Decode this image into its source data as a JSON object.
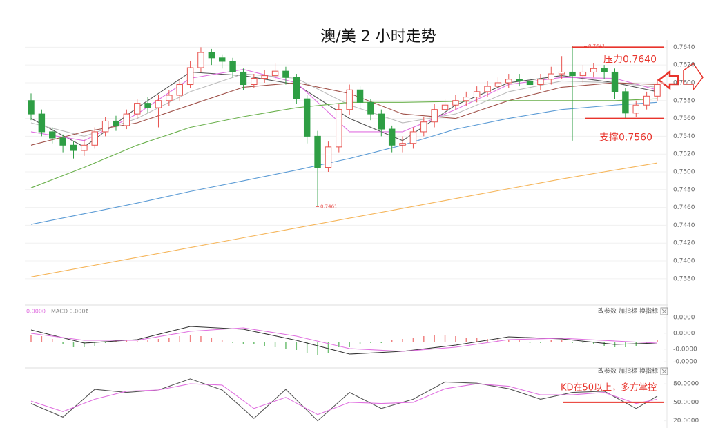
{
  "chart_data": [
    {
      "type": "candlestick",
      "title": "澳/美 2 小时走势",
      "open": [
        0.758,
        0.7565,
        0.7545,
        0.7538,
        0.753,
        0.7524,
        0.753,
        0.7545,
        0.7557,
        0.7552,
        0.7565,
        0.7577,
        0.7572,
        0.758,
        0.7586,
        0.7598,
        0.7617,
        0.7634,
        0.7628,
        0.7624,
        0.7612,
        0.7598,
        0.7605,
        0.7608,
        0.7613,
        0.7606,
        0.7582,
        0.754,
        0.7505,
        0.7528,
        0.757,
        0.7592,
        0.7578,
        0.7565,
        0.7548,
        0.753,
        0.7532,
        0.7545,
        0.7556,
        0.757,
        0.7575,
        0.758,
        0.7584,
        0.759,
        0.7596,
        0.76,
        0.7604,
        0.7602,
        0.7598,
        0.7604,
        0.761,
        0.7612,
        0.7608,
        0.7612,
        0.7616,
        0.7612,
        0.759,
        0.7566,
        0.7575,
        0.7585
      ],
      "high": [
        0.7588,
        0.757,
        0.755,
        0.7542,
        0.7534,
        0.7536,
        0.755,
        0.7562,
        0.7563,
        0.757,
        0.7582,
        0.7584,
        0.7586,
        0.7592,
        0.7604,
        0.7624,
        0.764,
        0.7638,
        0.7632,
        0.7628,
        0.7616,
        0.761,
        0.7614,
        0.7622,
        0.7618,
        0.761,
        0.7586,
        0.7546,
        0.7534,
        0.7576,
        0.7598,
        0.7596,
        0.7582,
        0.757,
        0.7552,
        0.754,
        0.755,
        0.7562,
        0.7576,
        0.7582,
        0.7586,
        0.759,
        0.7596,
        0.7602,
        0.7606,
        0.761,
        0.761,
        0.7606,
        0.761,
        0.7618,
        0.763,
        0.7641,
        0.762,
        0.7622,
        0.762,
        0.7616,
        0.7594,
        0.758,
        0.759,
        0.7604
      ],
      "low": [
        0.7558,
        0.754,
        0.7532,
        0.7522,
        0.7515,
        0.7518,
        0.7526,
        0.754,
        0.7546,
        0.7548,
        0.756,
        0.7566,
        0.755,
        0.7574,
        0.758,
        0.7594,
        0.7612,
        0.762,
        0.7616,
        0.7606,
        0.7592,
        0.7594,
        0.76,
        0.7602,
        0.7598,
        0.7576,
        0.7532,
        0.7461,
        0.75,
        0.7522,
        0.7564,
        0.7572,
        0.7558,
        0.754,
        0.7522,
        0.7522,
        0.7526,
        0.754,
        0.755,
        0.7564,
        0.757,
        0.7574,
        0.7578,
        0.7584,
        0.759,
        0.7594,
        0.7596,
        0.759,
        0.7592,
        0.7598,
        0.7604,
        0.7535,
        0.76,
        0.7606,
        0.7604,
        0.7582,
        0.756,
        0.7562,
        0.757,
        0.758
      ],
      "close": [
        0.7565,
        0.7545,
        0.7538,
        0.753,
        0.7524,
        0.753,
        0.7545,
        0.7557,
        0.7552,
        0.7565,
        0.7577,
        0.7572,
        0.758,
        0.7586,
        0.7598,
        0.7617,
        0.7634,
        0.7628,
        0.7624,
        0.7612,
        0.7598,
        0.7605,
        0.7608,
        0.7613,
        0.7606,
        0.7582,
        0.754,
        0.7505,
        0.7528,
        0.757,
        0.7592,
        0.7578,
        0.7565,
        0.7548,
        0.753,
        0.7532,
        0.7545,
        0.7556,
        0.757,
        0.7575,
        0.758,
        0.7584,
        0.759,
        0.7596,
        0.76,
        0.7604,
        0.7602,
        0.7598,
        0.7604,
        0.761,
        0.7612,
        0.7608,
        0.7612,
        0.7616,
        0.7612,
        0.759,
        0.7566,
        0.7575,
        0.7585,
        0.7598
      ],
      "up_color": "#e8534f",
      "down_color": "#2e9e44",
      "ylim": [
        0.7352,
        0.7648
      ],
      "yticks": [
        {
          "value": 0.764,
          "label": "0.7640"
        },
        {
          "value": 0.762,
          "label": "0.7620"
        },
        {
          "value": 0.76,
          "label": "0.7600"
        },
        {
          "value": 0.758,
          "label": "0.7580"
        },
        {
          "value": 0.756,
          "label": "0.7560"
        },
        {
          "value": 0.754,
          "label": "0.7540"
        },
        {
          "value": 0.752,
          "label": "0.7520"
        },
        {
          "value": 0.75,
          "label": "0.7500"
        },
        {
          "value": 0.748,
          "label": "0.7480"
        },
        {
          "value": 0.746,
          "label": "0.7460"
        },
        {
          "value": 0.744,
          "label": "0.7440"
        },
        {
          "value": 0.742,
          "label": "0.7420"
        },
        {
          "value": 0.74,
          "label": "0.7400"
        },
        {
          "value": 0.738,
          "label": "0.7380"
        }
      ],
      "grid": true,
      "line_x": [
        0,
        5,
        10,
        15,
        20,
        25,
        30,
        35,
        40,
        45,
        50,
        55,
        59
      ],
      "series": [
        {
          "color": "#555555",
          "values": [
            0.756,
            0.7528,
            0.7572,
            0.7612,
            0.7608,
            0.7598,
            0.756,
            0.7535,
            0.7575,
            0.76,
            0.7608,
            0.76,
            0.759
          ]
        },
        {
          "color": "#e070e0",
          "values": [
            0.7545,
            0.7535,
            0.7565,
            0.7605,
            0.7615,
            0.76,
            0.7545,
            0.7545,
            0.757,
            0.7598,
            0.7606,
            0.7605,
            0.7592
          ]
        },
        {
          "color": "#bbbbbb",
          "values": [
            0.7555,
            0.754,
            0.756,
            0.759,
            0.761,
            0.7605,
            0.7575,
            0.7555,
            0.7565,
            0.759,
            0.7602,
            0.76,
            0.7595
          ]
        },
        {
          "color": "#a0524a",
          "values": [
            0.753,
            0.7545,
            0.7555,
            0.7575,
            0.7595,
            0.76,
            0.7588,
            0.7565,
            0.756,
            0.758,
            0.7595,
            0.76,
            0.7598
          ]
        },
        {
          "color": "#6ab04c",
          "values": [
            0.7482,
            0.7505,
            0.753,
            0.755,
            0.7562,
            0.7572,
            0.7578,
            0.7578,
            0.7579,
            0.758,
            0.758,
            0.758,
            0.7582
          ]
        },
        {
          "color": "#5b9bd5",
          "values": [
            0.7441,
            0.7453,
            0.7465,
            0.7478,
            0.749,
            0.7502,
            0.7515,
            0.753,
            0.7548,
            0.756,
            0.757,
            0.7575,
            0.7578
          ]
        },
        {
          "color": "#f5b55a",
          "values": [
            0.7382,
            0.7393,
            0.7404,
            0.7415,
            0.7426,
            0.7437,
            0.7448,
            0.7459,
            0.747,
            0.7481,
            0.7492,
            0.7502,
            0.751
          ]
        }
      ],
      "annotations": [
        {
          "text": "压力0.7640",
          "value": 0.764,
          "color": "#e8342c"
        },
        {
          "text": "支撑0.7560",
          "value": 0.756,
          "color": "#e8342c"
        }
      ],
      "extremes": [
        {
          "label": "0.7641",
          "value": 0.7641
        },
        {
          "label": "0.7461",
          "value": 0.7461
        }
      ]
    },
    {
      "type": "macd",
      "legend": [
        "0.0000",
        "MACD 0.0000",
        "↑"
      ],
      "tools": [
        "改参数",
        "加指标",
        "换指标"
      ],
      "ylim": [
        -3.7e-05,
        4.5e-05
      ],
      "yticks": [
        {
          "value": 3.5e-05,
          "label": "0.0000"
        },
        {
          "value": 1.2e-05,
          "label": "0.0000"
        },
        {
          "value": -1.1e-05,
          "label": "-0.0000"
        },
        {
          "value": -2.9e-05,
          "label": "-0.0000"
        }
      ],
      "line_x": [
        0,
        5,
        10,
        15,
        20,
        25,
        30,
        35,
        40,
        45,
        50,
        55,
        59
      ],
      "series": [
        {
          "color": "#333333",
          "values": [
            1.7e-05,
            -2e-06,
            3e-06,
            2.2e-05,
            1.8e-05,
            2e-06,
            -1.8e-05,
            -1.4e-05,
            -5e-06,
            7e-06,
            4e-06,
            -4e-06,
            -2e-06
          ]
        },
        {
          "color": "#e070e0",
          "values": [
            1.2e-05,
            2e-06,
            2e-06,
            1.5e-05,
            2e-05,
            8e-06,
            -1e-05,
            -1.4e-05,
            -8e-06,
            3e-06,
            5e-06,
            1e-06,
            -2e-06
          ]
        }
      ],
      "histogram": [
        1e-05,
        8e-06,
        4e-06,
        -4e-06,
        -8e-06,
        -8e-06,
        -6e-06,
        -2e-06,
        2e-06,
        2e-06,
        1e-06,
        2e-06,
        4e-06,
        6e-06,
        8e-06,
        1e-05,
        8e-06,
        6e-06,
        2e-06,
        -2e-06,
        -4e-06,
        -4e-06,
        -6e-06,
        -8e-06,
        -1e-05,
        -1.2e-05,
        -1.6e-05,
        -2e-05,
        -1.6e-05,
        -8e-06,
        -8e-06,
        -4e-06,
        -2e-06,
        -2e-06,
        2e-06,
        4e-06,
        6e-06,
        8e-06,
        1e-05,
        1e-05,
        8e-06,
        6e-06,
        6e-06,
        4e-06,
        4e-06,
        2e-06,
        2e-06,
        -2e-06,
        -2e-06,
        2e-06,
        2e-06,
        -2e-06,
        -2e-06,
        -4e-06,
        -6e-06,
        -8e-06,
        -8e-06,
        -6e-06,
        -2e-06,
        2e-06
      ],
      "up_color": "#f08080",
      "down_color": "#6fbf73"
    },
    {
      "type": "kd",
      "tools": [
        "改参数",
        "加指标",
        "换指标"
      ],
      "ylim": [
        14,
        98
      ],
      "yticks": [
        {
          "value": 80,
          "label": "80.0000"
        },
        {
          "value": 50,
          "label": "50.0000"
        },
        {
          "value": 20,
          "label": "20.0000"
        }
      ],
      "line_x": [
        0,
        3,
        6,
        9,
        12,
        15,
        18,
        21,
        24,
        27,
        30,
        33,
        36,
        39,
        42,
        45,
        48,
        51,
        54,
        57,
        59
      ],
      "series": [
        {
          "color": "#555555",
          "values": [
            48,
            26,
            71,
            66,
            70,
            88,
            70,
            24,
            71,
            20,
            66,
            40,
            55,
            83,
            81,
            72,
            55,
            66,
            68,
            40,
            60
          ]
        },
        {
          "color": "#e070e0",
          "values": [
            52,
            35,
            55,
            68,
            70,
            80,
            78,
            40,
            58,
            30,
            50,
            48,
            50,
            72,
            80,
            76,
            62,
            62,
            66,
            48,
            55
          ]
        }
      ],
      "annotation": {
        "text": "KD在50以上，多方掌控",
        "value": 50,
        "color": "#e8342c"
      }
    }
  ]
}
